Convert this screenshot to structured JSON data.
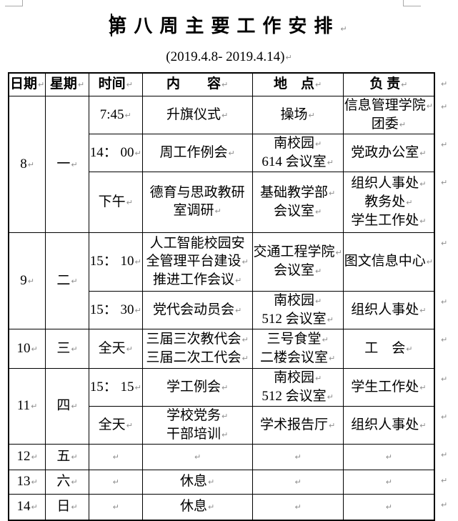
{
  "marks": {
    "paragraph": "↵"
  },
  "colors": {
    "border": "#000000",
    "mark_gray": "#8e8e8e",
    "crop_gray": "#a9a9a9",
    "text": "#000000"
  },
  "title": {
    "text": "第八周主要工作安排"
  },
  "subtitle": {
    "text": "(2019.4.8- 2019.4.14)"
  },
  "table": {
    "headers": {
      "date": [
        {
          "t": "日期",
          "m": true
        }
      ],
      "week": [
        {
          "t": "星期",
          "m": true
        }
      ],
      "time": [
        {
          "t": "时间",
          "m": true
        }
      ],
      "content": [
        {
          "t": "内　　容",
          "m": true
        }
      ],
      "place": [
        {
          "t": "地　点",
          "m": true
        }
      ],
      "resp": [
        {
          "t": "负 责",
          "m": true
        }
      ]
    },
    "r1": {
      "date": [
        {
          "t": "8",
          "m": true
        }
      ],
      "week": [
        {
          "t": "一",
          "m": true
        }
      ],
      "time": [
        {
          "t": "7:45",
          "m": true
        }
      ],
      "content": [
        {
          "t": "升旗仪式",
          "m": true
        }
      ],
      "place": [
        {
          "t": "操场",
          "m": true
        }
      ],
      "resp": [
        {
          "t": "信息管理学院",
          "m": true
        },
        {
          "t": "团委",
          "m": true
        }
      ]
    },
    "r2": {
      "time": [
        {
          "t": "14： 00",
          "m": true
        }
      ],
      "content": [
        {
          "t": "周工作例会",
          "m": true
        }
      ],
      "place": [
        {
          "t": "南校园",
          "m": true
        },
        {
          "t": "614 会议室",
          "m": true
        }
      ],
      "resp": [
        {
          "t": "党政办公室",
          "m": true
        }
      ]
    },
    "r3": {
      "time": [
        {
          "t": "下午",
          "m": true
        }
      ],
      "content": [
        {
          "t": "德育与思政教研",
          "m": false
        },
        {
          "t": "室调研",
          "m": true
        }
      ],
      "place": [
        {
          "t": "基础教学部",
          "m": true
        },
        {
          "t": "会议室",
          "m": true
        }
      ],
      "resp": [
        {
          "t": "组织人事处",
          "m": true
        },
        {
          "t": "教务处",
          "m": true
        },
        {
          "t": "学生工作处",
          "m": true
        }
      ]
    },
    "r4": {
      "date": [
        {
          "t": "9",
          "m": true
        }
      ],
      "week": [
        {
          "t": "二",
          "m": true
        }
      ],
      "time": [
        {
          "t": "15： 10",
          "m": true
        }
      ],
      "content": [
        {
          "t": "人工智能校园安",
          "m": false
        },
        {
          "t": "全管理平台建设",
          "m": true
        },
        {
          "t": "推进工作会议",
          "m": true
        }
      ],
      "place": [
        {
          "t": "交通工程学院",
          "m": true
        },
        {
          "t": "会议室",
          "m": true
        }
      ],
      "resp": [
        {
          "t": "图文信息中心",
          "m": true
        }
      ]
    },
    "r5": {
      "time": [
        {
          "t": "15： 30",
          "m": true
        }
      ],
      "content": [
        {
          "t": "党代会动员会",
          "m": true
        }
      ],
      "place": [
        {
          "t": "南校园",
          "m": true
        },
        {
          "t": "512 会议室",
          "m": true
        }
      ],
      "resp": [
        {
          "t": "组织人事处",
          "m": true
        }
      ]
    },
    "r6": {
      "date": [
        {
          "t": "10",
          "m": true
        }
      ],
      "week": [
        {
          "t": "三",
          "m": true
        }
      ],
      "time": [
        {
          "t": "全天",
          "m": true
        }
      ],
      "content": [
        {
          "t": "三届三次教代会",
          "m": true
        },
        {
          "t": "三届二次工代会",
          "m": true
        }
      ],
      "place": [
        {
          "t": "三号食堂",
          "m": true
        },
        {
          "t": "二楼会议室",
          "m": true
        }
      ],
      "resp": [
        {
          "t": "工　会",
          "m": true
        }
      ]
    },
    "r7": {
      "date": [
        {
          "t": "11",
          "m": true
        }
      ],
      "week": [
        {
          "t": "四",
          "m": true
        }
      ],
      "time": [
        {
          "t": "15： 15",
          "m": true
        }
      ],
      "content": [
        {
          "t": "学工例会",
          "m": true
        }
      ],
      "place": [
        {
          "t": "南校园",
          "m": true
        },
        {
          "t": "512 会议室",
          "m": true
        }
      ],
      "resp": [
        {
          "t": "学生工作处",
          "m": true
        }
      ]
    },
    "r8": {
      "time": [
        {
          "t": "全天",
          "m": true
        }
      ],
      "content": [
        {
          "t": "学校党务",
          "m": true
        },
        {
          "t": "干部培训",
          "m": true
        }
      ],
      "place": [
        {
          "t": "学术报告厅",
          "m": true
        }
      ],
      "resp": [
        {
          "t": "组织人事处",
          "m": true
        }
      ]
    },
    "r9": {
      "date": [
        {
          "t": "12",
          "m": true
        }
      ],
      "week": [
        {
          "t": "五",
          "m": true
        }
      ],
      "time": [
        {
          "t": "",
          "m": true
        }
      ],
      "content": [
        {
          "t": "",
          "m": true
        }
      ],
      "place": [
        {
          "t": "",
          "m": true
        }
      ],
      "resp": [
        {
          "t": "",
          "m": true
        }
      ]
    },
    "r10": {
      "date": [
        {
          "t": "13",
          "m": true
        }
      ],
      "week": [
        {
          "t": "六",
          "m": true
        }
      ],
      "time": [
        {
          "t": "",
          "m": true
        }
      ],
      "content": [
        {
          "t": "休息",
          "m": true
        }
      ],
      "place": [
        {
          "t": "",
          "m": true
        }
      ],
      "resp": [
        {
          "t": "",
          "m": true
        }
      ]
    },
    "r11": {
      "date": [
        {
          "t": "14",
          "m": true
        }
      ],
      "week": [
        {
          "t": "日",
          "m": true
        }
      ],
      "time": [
        {
          "t": "",
          "m": true
        }
      ],
      "content": [
        {
          "t": "休息",
          "m": true
        }
      ],
      "place": [
        {
          "t": "",
          "m": true
        }
      ],
      "resp": [
        {
          "t": "",
          "m": true
        }
      ]
    }
  }
}
